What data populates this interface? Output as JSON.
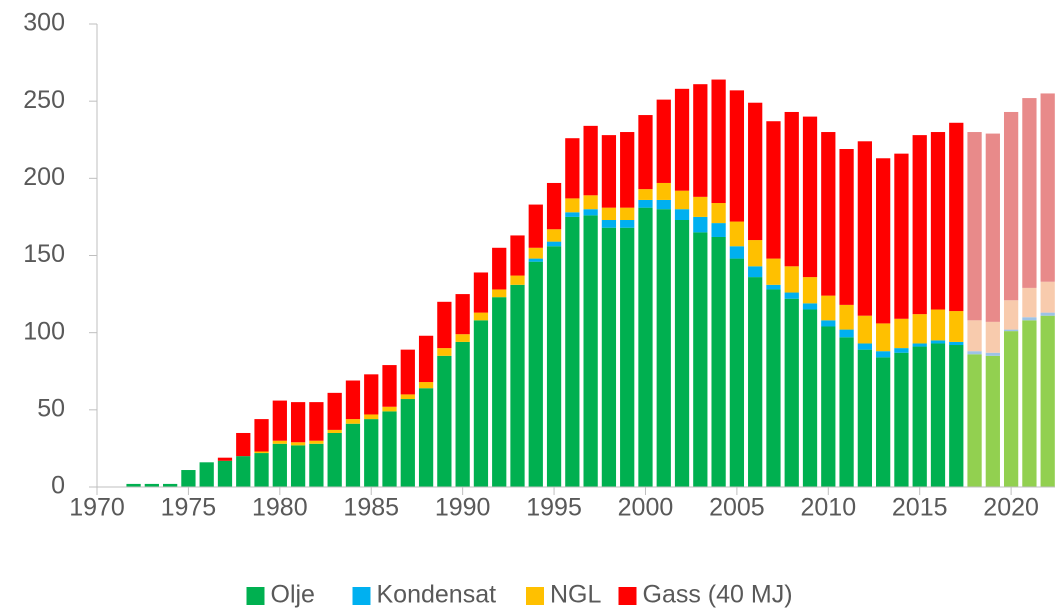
{
  "chart_data": {
    "type": "stacked_bar",
    "x": [
      1972,
      1973,
      1974,
      1975,
      1976,
      1977,
      1978,
      1979,
      1980,
      1981,
      1982,
      1983,
      1984,
      1985,
      1986,
      1987,
      1988,
      1989,
      1990,
      1991,
      1992,
      1993,
      1994,
      1995,
      1996,
      1997,
      1998,
      1999,
      2000,
      2001,
      2002,
      2003,
      2004,
      2005,
      2006,
      2007,
      2008,
      2009,
      2010,
      2011,
      2012,
      2013,
      2014,
      2015,
      2016,
      2017,
      2018,
      2019,
      2020,
      2021,
      2022
    ],
    "series": [
      {
        "name": "Olje",
        "color": "#00b050",
        "forecast_color": "#92d050",
        "values": [
          2,
          2,
          2,
          11,
          16,
          17,
          20,
          22,
          28,
          27,
          28,
          35,
          41,
          44,
          49,
          57,
          64,
          85,
          94,
          108,
          123,
          131,
          146,
          156,
          175,
          176,
          168,
          168,
          181,
          180,
          173,
          165,
          162,
          148,
          136,
          128,
          122,
          115,
          104,
          97,
          89,
          84,
          87,
          91,
          93,
          92,
          86,
          85,
          101,
          108,
          111
        ]
      },
      {
        "name": "Kondensat",
        "color": "#00b0f0",
        "forecast_color": "#9dc3e6",
        "values": [
          0,
          0,
          0,
          0,
          0,
          0,
          0,
          0,
          0,
          0,
          0,
          0,
          0,
          0,
          0,
          0,
          0,
          0,
          0,
          0,
          0,
          0,
          2,
          3,
          3,
          4,
          5,
          5,
          5,
          6,
          7,
          10,
          9,
          8,
          7,
          3,
          4,
          4,
          4,
          5,
          4,
          4,
          3,
          2,
          2,
          2,
          2,
          2,
          1,
          2,
          2
        ]
      },
      {
        "name": "NGL",
        "color": "#ffc000",
        "forecast_color": "#f8cbad",
        "values": [
          0,
          0,
          0,
          0,
          0,
          0,
          0,
          1,
          2,
          2,
          2,
          2,
          3,
          3,
          3,
          3,
          4,
          5,
          5,
          5,
          5,
          6,
          7,
          8,
          9,
          9,
          8,
          8,
          7,
          11,
          12,
          13,
          13,
          16,
          17,
          17,
          17,
          17,
          16,
          16,
          18,
          18,
          19,
          19,
          20,
          20,
          20,
          20,
          19,
          19,
          20
        ]
      },
      {
        "name": "Gass (40 MJ)",
        "color": "#ff0000",
        "forecast_color": "#e88a8a",
        "values": [
          0,
          0,
          0,
          0,
          0,
          2,
          15,
          21,
          26,
          26,
          25,
          24,
          25,
          26,
          27,
          29,
          30,
          30,
          26,
          26,
          27,
          26,
          28,
          30,
          39,
          45,
          47,
          49,
          48,
          54,
          66,
          73,
          80,
          85,
          89,
          89,
          100,
          104,
          106,
          101,
          113,
          107,
          107,
          116,
          115,
          122,
          122,
          122,
          122,
          123,
          122
        ]
      }
    ],
    "forecast_x": 2018,
    "xlim": [
      1970,
      2022.4
    ],
    "xticks": [
      1970,
      1975,
      1980,
      1985,
      1990,
      1995,
      2000,
      2005,
      2010,
      2015,
      2020
    ],
    "ylim": [
      0,
      300
    ],
    "yticks": [
      0,
      50,
      100,
      150,
      200,
      250,
      300
    ],
    "legend": "bottom"
  }
}
